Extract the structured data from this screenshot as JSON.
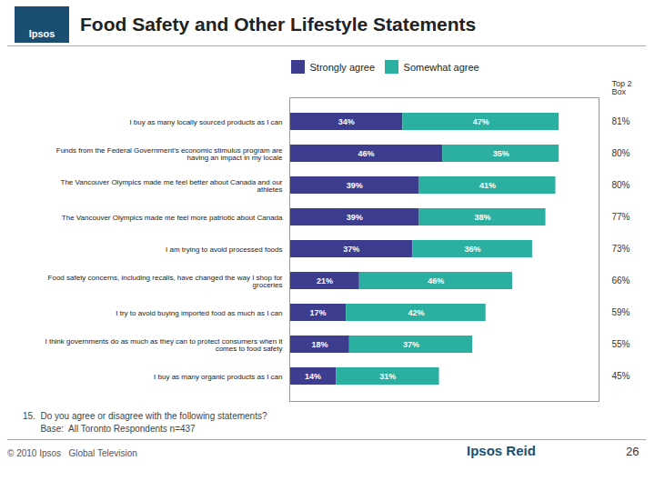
{
  "chart_data": {
    "type": "bar",
    "orientation": "horizontal",
    "stacked": true,
    "data_labels": true,
    "grid": false,
    "legend": "top",
    "tick_labels": "y",
    "title": "Food Safety and Other Lifestyle Statements",
    "categories": [
      "I buy as many locally sourced products as I can",
      "Funds from the Federal Government's economic stimulus program are\nhaving an impact in my locale",
      "The Vancouver Olympics made me feel better about Canada and our\nathletes",
      "The Vancouver Olympics made me feel more patriotic about Canada",
      "I am trying to avoid processed foods",
      "Food safety concerns, including recalls, have changed the way I shop for\ngroceries",
      "I try to avoid buying imported food as much as I can",
      "I think governments do as much as they can to protect consumers when it\ncomes to food safety",
      "I buy as many organic products as I can"
    ],
    "series": [
      {
        "name": "Strongly agree",
        "color": "#3D3D8F",
        "values": [
          34,
          46,
          39,
          39,
          37,
          21,
          17,
          18,
          14
        ],
        "value_labels": [
          "34%",
          "46%",
          "39%",
          "39%",
          "37%",
          "21%",
          "17%",
          "18%",
          "14%"
        ]
      },
      {
        "name": "Somewhat agree",
        "color": "#2AAFA0",
        "values": [
          47,
          35,
          41,
          38,
          36,
          46,
          42,
          37,
          31
        ],
        "value_labels": [
          "47%",
          "35%",
          "41%",
          "38%",
          "36%",
          "46%",
          "42%",
          "37%",
          "31%"
        ]
      }
    ],
    "top2box": {
      "label": "Top 2\nBox",
      "labels": [
        "81%",
        "80%",
        "80%",
        "77%",
        "73%",
        "66%",
        "59%",
        "55%",
        "45%"
      ]
    },
    "xlim": [
      0,
      93
    ],
    "xticks": [],
    "annotations": [
      "Ipsos",
      "15.  Do you agree or disagree with the following statements?",
      "       Base:  All Toronto Respondents n=437",
      "© 2010 Ipsos   Global Television",
      "Ipsos Reid",
      "26"
    ]
  }
}
